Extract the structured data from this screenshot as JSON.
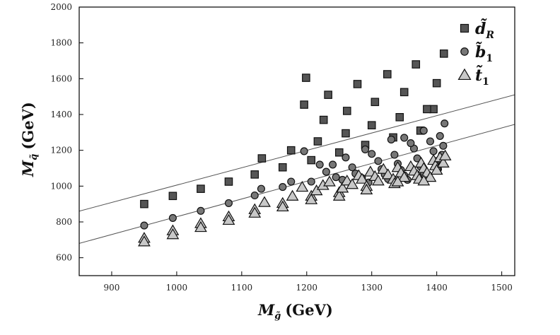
{
  "chart_data": {
    "type": "scatter",
    "title": "",
    "xlabel_main": "M",
    "xlabel_sub": "g̃",
    "xlabel_unit": "(GeV)",
    "ylabel_main": "M",
    "ylabel_sub": "q̃",
    "ylabel_unit": "(GeV)",
    "xlim": [
      850,
      1520
    ],
    "ylim": [
      500,
      2000
    ],
    "x_ticks": [
      900,
      1000,
      1100,
      1200,
      1300,
      1400,
      1500
    ],
    "y_ticks": [
      600,
      800,
      1000,
      1200,
      1400,
      1600,
      1800,
      2000
    ],
    "grid": false,
    "legend_position": "top-right",
    "series": [
      {
        "name": "d̃R",
        "label_main": "d̃",
        "label_sub": "R",
        "marker": "square",
        "color": "#555555",
        "points": [
          [
            950,
            900
          ],
          [
            994,
            945
          ],
          [
            1037,
            985
          ],
          [
            1080,
            1025
          ],
          [
            1120,
            1065
          ],
          [
            1163,
            1105
          ],
          [
            1207,
            1145
          ],
          [
            1250,
            1188
          ],
          [
            1290,
            1230
          ],
          [
            1333,
            1272
          ],
          [
            1375,
            1310
          ],
          [
            1395,
            1430
          ],
          [
            1131,
            1155
          ],
          [
            1176,
            1200
          ],
          [
            1217,
            1250
          ],
          [
            1260,
            1295
          ],
          [
            1300,
            1340
          ],
          [
            1343,
            1385
          ],
          [
            1385,
            1430
          ],
          [
            1400,
            1575
          ],
          [
            1196,
            1455
          ],
          [
            1226,
            1370
          ],
          [
            1262,
            1420
          ],
          [
            1305,
            1470
          ],
          [
            1350,
            1525
          ],
          [
            1233,
            1510
          ],
          [
            1278,
            1570
          ],
          [
            1199,
            1605
          ],
          [
            1324,
            1625
          ],
          [
            1368,
            1680
          ],
          [
            1411,
            1740
          ]
        ]
      },
      {
        "name": "b̃1",
        "label_main": "b̃",
        "label_sub": "1",
        "marker": "circle",
        "color": "#777777",
        "points": [
          [
            950,
            780
          ],
          [
            994,
            822
          ],
          [
            1037,
            862
          ],
          [
            1080,
            905
          ],
          [
            1120,
            948
          ],
          [
            1163,
            995
          ],
          [
            1207,
            1025
          ],
          [
            1130,
            985
          ],
          [
            1176,
            1025
          ],
          [
            1196,
            1195
          ],
          [
            1220,
            1120
          ],
          [
            1230,
            1080
          ],
          [
            1245,
            1050
          ],
          [
            1255,
            1035
          ],
          [
            1260,
            1160
          ],
          [
            1270,
            1105
          ],
          [
            1275,
            1070
          ],
          [
            1285,
            1045
          ],
          [
            1295,
            1020
          ],
          [
            1300,
            1180
          ],
          [
            1310,
            1140
          ],
          [
            1315,
            1095
          ],
          [
            1320,
            1065
          ],
          [
            1325,
            1040
          ],
          [
            1330,
            1260
          ],
          [
            1335,
            1175
          ],
          [
            1340,
            1125
          ],
          [
            1345,
            1090
          ],
          [
            1350,
            1060
          ],
          [
            1355,
            1035
          ],
          [
            1365,
            1210
          ],
          [
            1370,
            1155
          ],
          [
            1375,
            1110
          ],
          [
            1380,
            1075
          ],
          [
            1385,
            1050
          ],
          [
            1390,
            1250
          ],
          [
            1395,
            1195
          ],
          [
            1400,
            1140
          ],
          [
            1402,
            1095
          ],
          [
            1405,
            1280
          ],
          [
            1410,
            1225
          ],
          [
            1412,
            1350
          ],
          [
            1408,
            1175
          ],
          [
            1240,
            1120
          ],
          [
            1290,
            1205
          ],
          [
            1380,
            1310
          ],
          [
            1360,
            1240
          ],
          [
            1350,
            1270
          ]
        ]
      },
      {
        "name": "t̃1",
        "label_main": "t̃",
        "label_sub": "1",
        "marker": "triangle",
        "color": "#c8c8c8",
        "points": [
          [
            950,
            710
          ],
          [
            950,
            690
          ],
          [
            994,
            752
          ],
          [
            994,
            730
          ],
          [
            1037,
            792
          ],
          [
            1037,
            770
          ],
          [
            1080,
            830
          ],
          [
            1080,
            810
          ],
          [
            1120,
            870
          ],
          [
            1120,
            850
          ],
          [
            1163,
            905
          ],
          [
            1163,
            885
          ],
          [
            1207,
            945
          ],
          [
            1207,
            925
          ],
          [
            1135,
            910
          ],
          [
            1178,
            945
          ],
          [
            1193,
            995
          ],
          [
            1215,
            975
          ],
          [
            1225,
            1005
          ],
          [
            1235,
            1025
          ],
          [
            1250,
            965
          ],
          [
            1250,
            945
          ],
          [
            1255,
            990
          ],
          [
            1262,
            1030
          ],
          [
            1270,
            1010
          ],
          [
            1280,
            1060
          ],
          [
            1285,
            1040
          ],
          [
            1292,
            1000
          ],
          [
            1292,
            980
          ],
          [
            1298,
            1080
          ],
          [
            1305,
            1055
          ],
          [
            1310,
            1030
          ],
          [
            1318,
            1095
          ],
          [
            1325,
            1065
          ],
          [
            1333,
            1040
          ],
          [
            1335,
            1015
          ],
          [
            1340,
            1105
          ],
          [
            1345,
            1075
          ],
          [
            1350,
            1050
          ],
          [
            1360,
            1110
          ],
          [
            1365,
            1085
          ],
          [
            1370,
            1060
          ],
          [
            1373,
            1040
          ],
          [
            1376,
            1130
          ],
          [
            1380,
            1100
          ],
          [
            1385,
            1075
          ],
          [
            1390,
            1050
          ],
          [
            1395,
            1145
          ],
          [
            1398,
            1115
          ],
          [
            1400,
            1090
          ],
          [
            1405,
            1160
          ],
          [
            1410,
            1130
          ],
          [
            1413,
            1170
          ],
          [
            1340,
            1025
          ],
          [
            1380,
            1030
          ]
        ]
      }
    ],
    "reference_lines": [
      {
        "name": "upper-line",
        "x": [
          850,
          1520
        ],
        "y": [
          860,
          1510
        ]
      },
      {
        "name": "lower-line",
        "x": [
          850,
          1520
        ],
        "y": [
          680,
          1345
        ]
      }
    ]
  }
}
